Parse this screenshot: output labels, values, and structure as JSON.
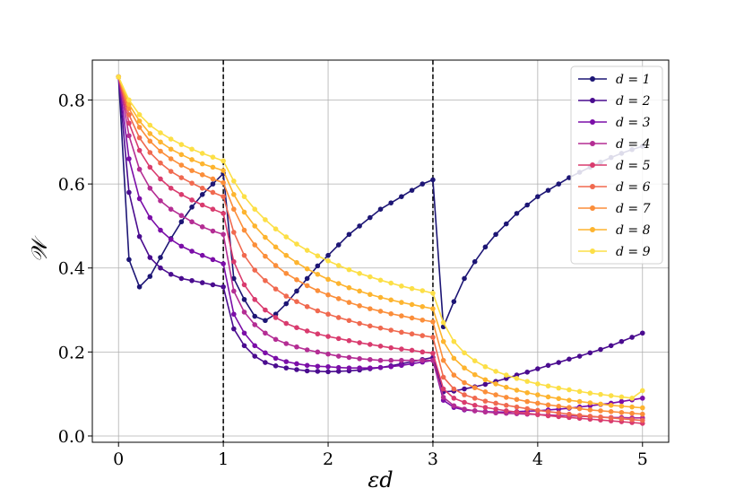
{
  "chart_data": {
    "type": "line",
    "xlabel": "εd",
    "ylabel": "𝒲",
    "xlim": [
      -0.25,
      5.25
    ],
    "ylim": [
      -0.015,
      0.895
    ],
    "xticks": [
      "0",
      "1",
      "2",
      "3",
      "4",
      "5"
    ],
    "yticks": [
      "0.0",
      "0.2",
      "0.4",
      "0.6",
      "0.8"
    ],
    "grid": true,
    "legend_position": "top-right",
    "vlines": [
      1,
      3
    ],
    "series": [
      {
        "name": "d = 1",
        "color": "#1d1675",
        "x": [
          0,
          0.1,
          0.2,
          0.3,
          0.4,
          0.5,
          0.6,
          0.7,
          0.8,
          0.9,
          1.0,
          1.1,
          1.2,
          1.3,
          1.4,
          1.5,
          1.6,
          1.7,
          1.8,
          1.9,
          2.0,
          2.1,
          2.2,
          2.3,
          2.4,
          2.5,
          2.6,
          2.7,
          2.8,
          2.9,
          3.0,
          3.1,
          3.2,
          3.3,
          3.4,
          3.5,
          3.6,
          3.7,
          3.8,
          3.9,
          4.0,
          4.1,
          4.2,
          4.3,
          4.4,
          4.5,
          4.6,
          4.7,
          4.8,
          4.9,
          5.0
        ],
        "y": [
          0.855,
          0.42,
          0.355,
          0.38,
          0.425,
          0.47,
          0.51,
          0.545,
          0.575,
          0.6,
          0.625,
          0.375,
          0.325,
          0.285,
          0.275,
          0.29,
          0.315,
          0.345,
          0.375,
          0.405,
          0.43,
          0.455,
          0.48,
          0.5,
          0.52,
          0.54,
          0.555,
          0.57,
          0.585,
          0.6,
          0.61,
          0.26,
          0.32,
          0.375,
          0.415,
          0.45,
          0.48,
          0.505,
          0.53,
          0.55,
          0.57,
          0.585,
          0.6,
          0.615,
          0.628,
          0.64,
          0.652,
          0.663,
          0.673,
          0.682,
          0.69
        ]
      },
      {
        "name": "d = 2",
        "color": "#4a0c8f",
        "x": [
          0,
          0.1,
          0.2,
          0.3,
          0.4,
          0.5,
          0.6,
          0.7,
          0.8,
          0.9,
          1.0,
          1.1,
          1.2,
          1.3,
          1.4,
          1.5,
          1.6,
          1.7,
          1.8,
          1.9,
          2.0,
          2.1,
          2.2,
          2.3,
          2.4,
          2.5,
          2.6,
          2.7,
          2.8,
          2.9,
          3.0,
          3.1,
          3.2,
          3.3,
          3.4,
          3.5,
          3.6,
          3.7,
          3.8,
          3.9,
          4.0,
          4.1,
          4.2,
          4.3,
          4.4,
          4.5,
          4.6,
          4.7,
          4.8,
          4.9,
          5.0
        ],
        "y": [
          0.855,
          0.58,
          0.475,
          0.425,
          0.4,
          0.385,
          0.375,
          0.37,
          0.365,
          0.36,
          0.355,
          0.255,
          0.215,
          0.19,
          0.175,
          0.167,
          0.162,
          0.158,
          0.155,
          0.154,
          0.153,
          0.154,
          0.155,
          0.157,
          0.16,
          0.163,
          0.167,
          0.172,
          0.177,
          0.182,
          0.187,
          0.105,
          0.107,
          0.112,
          0.117,
          0.123,
          0.13,
          0.137,
          0.145,
          0.152,
          0.16,
          0.168,
          0.175,
          0.183,
          0.19,
          0.198,
          0.206,
          0.215,
          0.225,
          0.235,
          0.245
        ]
      },
      {
        "name": "d = 3",
        "color": "#7b0ea8",
        "x": [
          0,
          0.1,
          0.2,
          0.3,
          0.4,
          0.5,
          0.6,
          0.7,
          0.8,
          0.9,
          1.0,
          1.1,
          1.2,
          1.3,
          1.4,
          1.5,
          1.6,
          1.7,
          1.8,
          1.9,
          2.0,
          2.1,
          2.2,
          2.3,
          2.4,
          2.5,
          2.6,
          2.7,
          2.8,
          2.9,
          3.0,
          3.1,
          3.2,
          3.3,
          3.4,
          3.5,
          3.6,
          3.7,
          3.8,
          3.9,
          4.0,
          4.1,
          4.2,
          4.3,
          4.4,
          4.5,
          4.6,
          4.7,
          4.8,
          4.9,
          5.0
        ],
        "y": [
          0.855,
          0.66,
          0.565,
          0.52,
          0.49,
          0.468,
          0.452,
          0.44,
          0.43,
          0.42,
          0.41,
          0.29,
          0.245,
          0.215,
          0.198,
          0.185,
          0.177,
          0.172,
          0.168,
          0.166,
          0.165,
          0.163,
          0.162,
          0.162,
          0.162,
          0.163,
          0.165,
          0.168,
          0.172,
          0.176,
          0.18,
          0.085,
          0.068,
          0.062,
          0.06,
          0.058,
          0.057,
          0.057,
          0.058,
          0.059,
          0.06,
          0.062,
          0.064,
          0.066,
          0.069,
          0.072,
          0.075,
          0.078,
          0.082,
          0.086,
          0.09
        ]
      },
      {
        "name": "d = 4",
        "color": "#b42d94",
        "x": [
          0,
          0.1,
          0.2,
          0.3,
          0.4,
          0.5,
          0.6,
          0.7,
          0.8,
          0.9,
          1.0,
          1.1,
          1.2,
          1.3,
          1.4,
          1.5,
          1.6,
          1.7,
          1.8,
          1.9,
          2.0,
          2.1,
          2.2,
          2.3,
          2.4,
          2.5,
          2.6,
          2.7,
          2.8,
          2.9,
          3.0,
          3.1,
          3.2,
          3.3,
          3.4,
          3.5,
          3.6,
          3.7,
          3.8,
          3.9,
          4.0,
          4.1,
          4.2,
          4.3,
          4.4,
          4.5,
          4.6,
          4.7,
          4.8,
          4.9,
          5.0
        ],
        "y": [
          0.855,
          0.715,
          0.635,
          0.59,
          0.56,
          0.54,
          0.525,
          0.51,
          0.498,
          0.488,
          0.48,
          0.345,
          0.295,
          0.265,
          0.245,
          0.23,
          0.22,
          0.212,
          0.205,
          0.2,
          0.195,
          0.19,
          0.187,
          0.184,
          0.182,
          0.18,
          0.18,
          0.18,
          0.18,
          0.18,
          0.18,
          0.092,
          0.072,
          0.064,
          0.06,
          0.057,
          0.055,
          0.054,
          0.053,
          0.052,
          0.051,
          0.05,
          0.049,
          0.048,
          0.047,
          0.046,
          0.045,
          0.044,
          0.044,
          0.043,
          0.043
        ]
      },
      {
        "name": "d = 5",
        "color": "#d93b6e",
        "x": [
          0,
          0.1,
          0.2,
          0.3,
          0.4,
          0.5,
          0.6,
          0.7,
          0.8,
          0.9,
          1.0,
          1.1,
          1.2,
          1.3,
          1.4,
          1.5,
          1.6,
          1.7,
          1.8,
          1.9,
          2.0,
          2.1,
          2.2,
          2.3,
          2.4,
          2.5,
          2.6,
          2.7,
          2.8,
          2.9,
          3.0,
          3.1,
          3.2,
          3.3,
          3.4,
          3.5,
          3.6,
          3.7,
          3.8,
          3.9,
          4.0,
          4.1,
          4.2,
          4.3,
          4.4,
          4.5,
          4.6,
          4.7,
          4.8,
          4.9,
          5.0
        ],
        "y": [
          0.855,
          0.745,
          0.68,
          0.64,
          0.612,
          0.59,
          0.575,
          0.562,
          0.55,
          0.54,
          0.53,
          0.415,
          0.36,
          0.325,
          0.3,
          0.282,
          0.268,
          0.258,
          0.25,
          0.243,
          0.237,
          0.232,
          0.227,
          0.222,
          0.218,
          0.214,
          0.21,
          0.207,
          0.204,
          0.2,
          0.197,
          0.112,
          0.09,
          0.08,
          0.073,
          0.068,
          0.064,
          0.06,
          0.057,
          0.054,
          0.051,
          0.048,
          0.046,
          0.044,
          0.042,
          0.04,
          0.038,
          0.036,
          0.034,
          0.032,
          0.03
        ]
      },
      {
        "name": "d = 6",
        "color": "#f0694f",
        "x": [
          0,
          0.1,
          0.2,
          0.3,
          0.4,
          0.5,
          0.6,
          0.7,
          0.8,
          0.9,
          1.0,
          1.1,
          1.2,
          1.3,
          1.4,
          1.5,
          1.6,
          1.7,
          1.8,
          1.9,
          2.0,
          2.1,
          2.2,
          2.3,
          2.4,
          2.5,
          2.6,
          2.7,
          2.8,
          2.9,
          3.0,
          3.1,
          3.2,
          3.3,
          3.4,
          3.5,
          3.6,
          3.7,
          3.8,
          3.9,
          4.0,
          4.1,
          4.2,
          4.3,
          4.4,
          4.5,
          4.6,
          4.7,
          4.8,
          4.9,
          5.0
        ],
        "y": [
          0.855,
          0.765,
          0.71,
          0.675,
          0.65,
          0.63,
          0.615,
          0.602,
          0.59,
          0.58,
          0.57,
          0.485,
          0.43,
          0.395,
          0.37,
          0.35,
          0.333,
          0.32,
          0.308,
          0.298,
          0.29,
          0.282,
          0.275,
          0.268,
          0.262,
          0.257,
          0.252,
          0.247,
          0.243,
          0.239,
          0.235,
          0.14,
          0.112,
          0.098,
          0.09,
          0.083,
          0.078,
          0.073,
          0.069,
          0.065,
          0.061,
          0.058,
          0.055,
          0.052,
          0.049,
          0.047,
          0.045,
          0.043,
          0.041,
          0.039,
          0.037
        ]
      },
      {
        "name": "d = 7",
        "color": "#fb8e3a",
        "x": [
          0,
          0.1,
          0.2,
          0.3,
          0.4,
          0.5,
          0.6,
          0.7,
          0.8,
          0.9,
          1.0,
          1.1,
          1.2,
          1.3,
          1.4,
          1.5,
          1.6,
          1.7,
          1.8,
          1.9,
          2.0,
          2.1,
          2.2,
          2.3,
          2.4,
          2.5,
          2.6,
          2.7,
          2.8,
          2.9,
          3.0,
          3.1,
          3.2,
          3.3,
          3.4,
          3.5,
          3.6,
          3.7,
          3.8,
          3.9,
          4.0,
          4.1,
          4.2,
          4.3,
          4.4,
          4.5,
          4.6,
          4.7,
          4.8,
          4.9,
          5.0
        ],
        "y": [
          0.855,
          0.78,
          0.735,
          0.702,
          0.678,
          0.66,
          0.645,
          0.632,
          0.622,
          0.612,
          0.603,
          0.54,
          0.49,
          0.455,
          0.428,
          0.406,
          0.387,
          0.372,
          0.358,
          0.346,
          0.336,
          0.327,
          0.318,
          0.31,
          0.303,
          0.297,
          0.291,
          0.286,
          0.281,
          0.276,
          0.272,
          0.18,
          0.145,
          0.127,
          0.115,
          0.105,
          0.098,
          0.092,
          0.087,
          0.082,
          0.078,
          0.074,
          0.071,
          0.068,
          0.065,
          0.062,
          0.06,
          0.058,
          0.056,
          0.054,
          0.052
        ]
      },
      {
        "name": "d = 8",
        "color": "#fdb42f",
        "x": [
          0,
          0.1,
          0.2,
          0.3,
          0.4,
          0.5,
          0.6,
          0.7,
          0.8,
          0.9,
          1.0,
          1.1,
          1.2,
          1.3,
          1.4,
          1.5,
          1.6,
          1.7,
          1.8,
          1.9,
          2.0,
          2.1,
          2.2,
          2.3,
          2.4,
          2.5,
          2.6,
          2.7,
          2.8,
          2.9,
          3.0,
          3.1,
          3.2,
          3.3,
          3.4,
          3.5,
          3.6,
          3.7,
          3.8,
          3.9,
          4.0,
          4.1,
          4.2,
          4.3,
          4.4,
          4.5,
          4.6,
          4.7,
          4.8,
          4.9,
          5.0
        ],
        "y": [
          0.855,
          0.79,
          0.75,
          0.72,
          0.7,
          0.683,
          0.67,
          0.658,
          0.648,
          0.64,
          0.632,
          0.575,
          0.533,
          0.5,
          0.473,
          0.45,
          0.43,
          0.413,
          0.398,
          0.385,
          0.373,
          0.363,
          0.353,
          0.345,
          0.337,
          0.33,
          0.324,
          0.318,
          0.313,
          0.308,
          0.303,
          0.225,
          0.185,
          0.162,
          0.146,
          0.134,
          0.124,
          0.116,
          0.109,
          0.103,
          0.098,
          0.093,
          0.089,
          0.085,
          0.082,
          0.079,
          0.076,
          0.073,
          0.071,
          0.069,
          0.067
        ]
      },
      {
        "name": "d = 9",
        "color": "#fcdf46",
        "x": [
          0,
          0.1,
          0.2,
          0.3,
          0.4,
          0.5,
          0.6,
          0.7,
          0.8,
          0.9,
          1.0,
          1.1,
          1.2,
          1.3,
          1.4,
          1.5,
          1.6,
          1.7,
          1.8,
          1.9,
          2.0,
          2.1,
          2.2,
          2.3,
          2.4,
          2.5,
          2.6,
          2.7,
          2.8,
          2.9,
          3.0,
          3.1,
          3.2,
          3.3,
          3.4,
          3.5,
          3.6,
          3.7,
          3.8,
          3.9,
          4.0,
          4.1,
          4.2,
          4.3,
          4.4,
          4.5,
          4.6,
          4.7,
          4.8,
          4.9,
          5.0
        ],
        "y": [
          0.855,
          0.8,
          0.765,
          0.74,
          0.722,
          0.707,
          0.694,
          0.683,
          0.673,
          0.664,
          0.655,
          0.607,
          0.57,
          0.54,
          0.515,
          0.493,
          0.474,
          0.457,
          0.442,
          0.429,
          0.417,
          0.406,
          0.396,
          0.387,
          0.379,
          0.371,
          0.364,
          0.357,
          0.351,
          0.346,
          0.34,
          0.27,
          0.225,
          0.198,
          0.179,
          0.165,
          0.154,
          0.145,
          0.137,
          0.13,
          0.124,
          0.119,
          0.114,
          0.11,
          0.106,
          0.102,
          0.099,
          0.096,
          0.093,
          0.09,
          0.108
        ]
      }
    ]
  }
}
